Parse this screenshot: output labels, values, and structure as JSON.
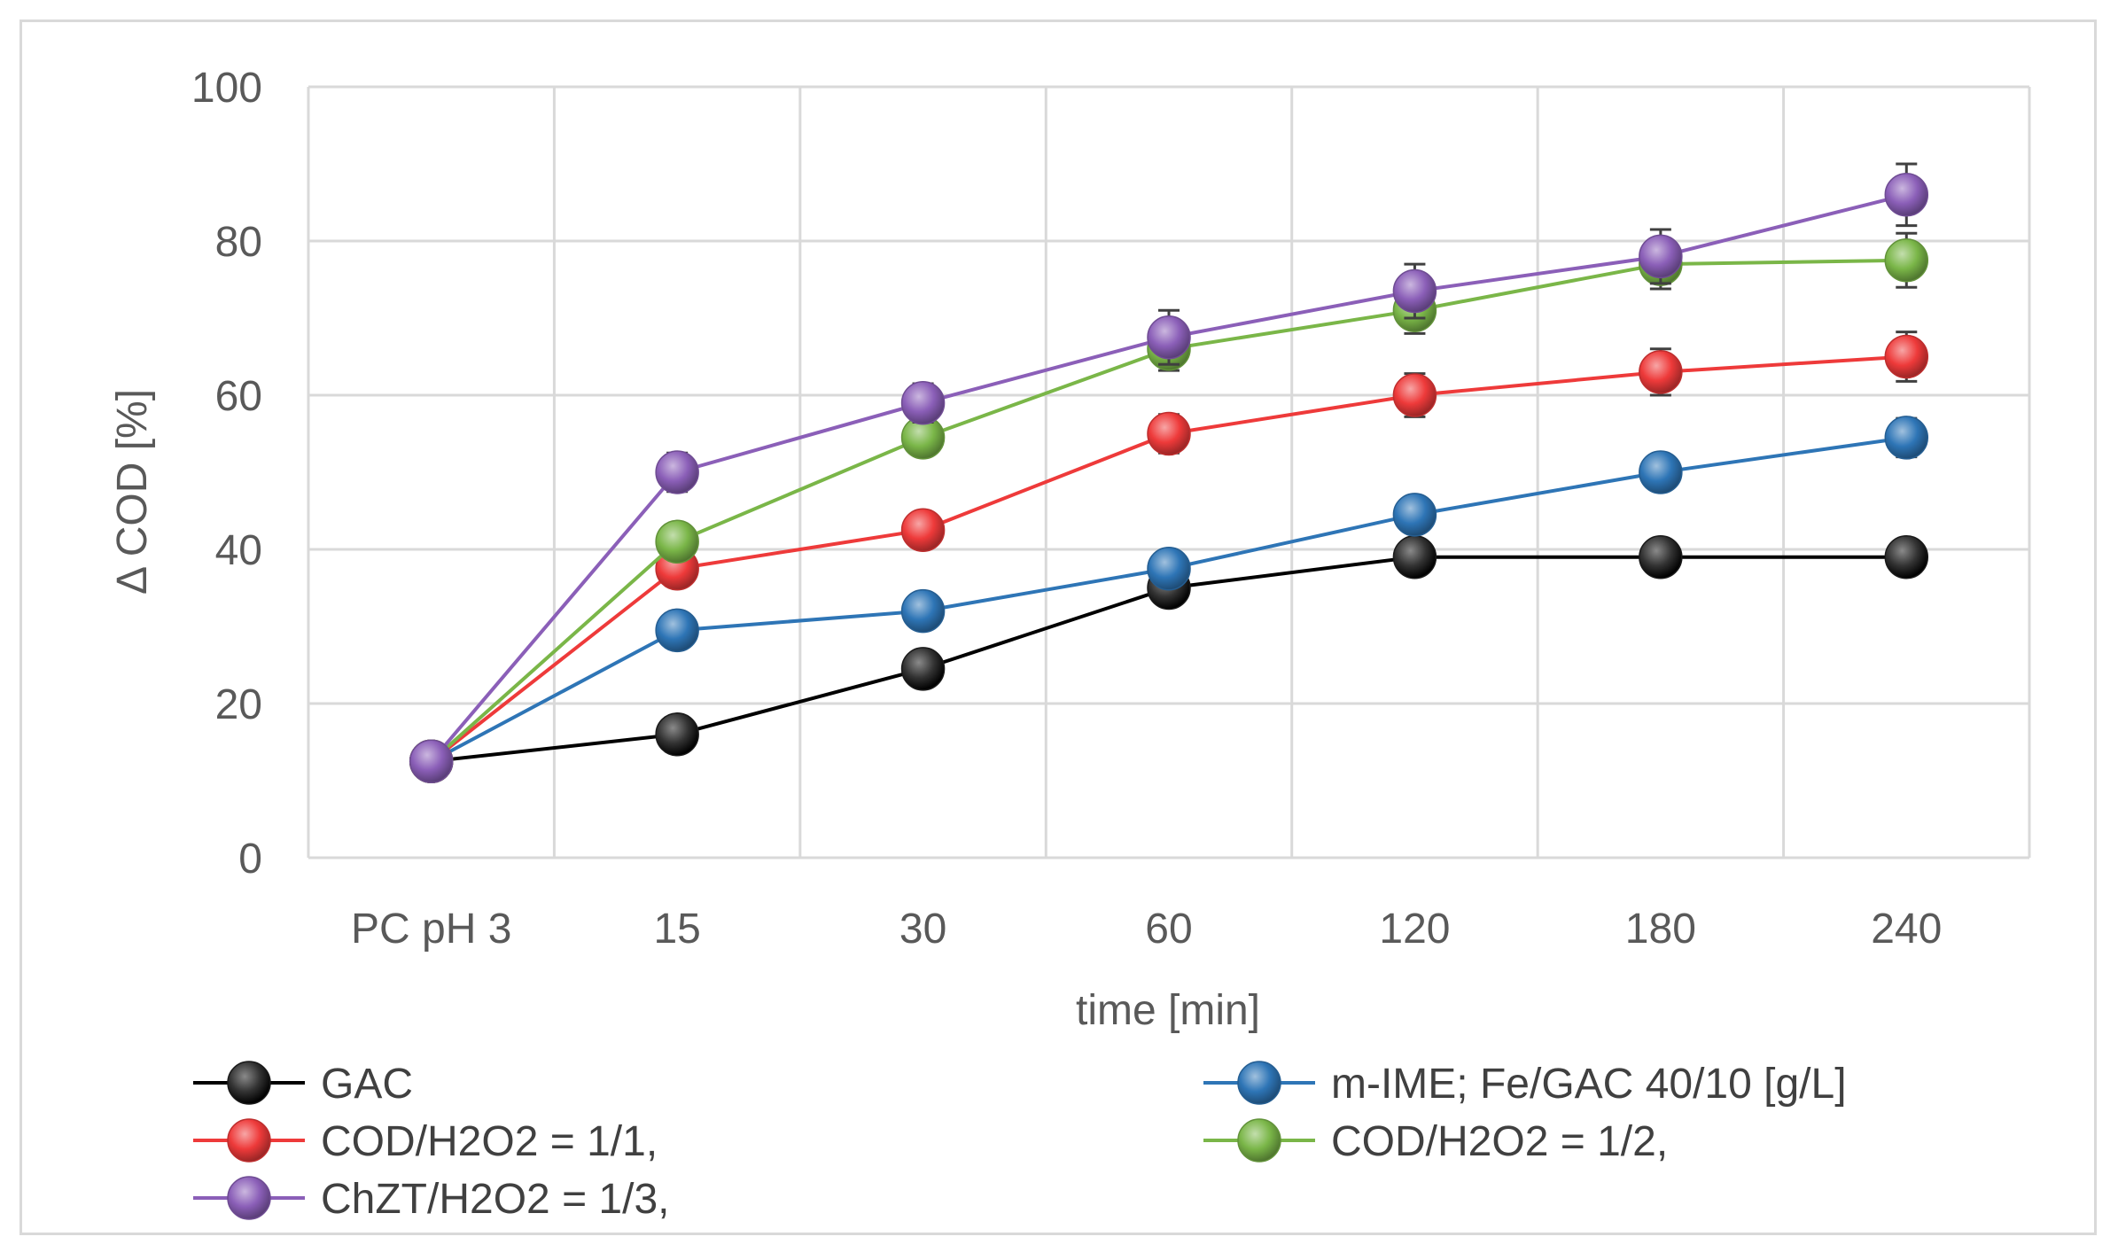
{
  "chart_data": {
    "type": "line",
    "title": "",
    "xlabel": "time [min]",
    "ylabel": "Δ COD [%]",
    "categories": [
      "PC pH 3",
      "15",
      "30",
      "60",
      "120",
      "180",
      "240"
    ],
    "ylim": [
      0,
      100
    ],
    "yticks": [
      0,
      20,
      40,
      60,
      80,
      100
    ],
    "grid": true,
    "legend_position": "bottom",
    "series": [
      {
        "name": "GAC",
        "color": "#000000",
        "values": [
          12.5,
          16,
          24.5,
          35,
          39,
          39,
          39
        ],
        "errors": [
          0,
          0,
          0,
          0,
          0,
          0,
          0
        ]
      },
      {
        "name": "m-IME; Fe/GAC  40/10 [g/L]",
        "color": "#2e75b6",
        "values": [
          12.5,
          29.5,
          32,
          37.5,
          44.5,
          50,
          54.5
        ],
        "errors": [
          0,
          0,
          0,
          0,
          0,
          0,
          2.5
        ]
      },
      {
        "name": "COD/H2O2 = 1/1,",
        "color": "#ee3a3a",
        "values": [
          12.5,
          37.5,
          42.5,
          55,
          60,
          63,
          65
        ],
        "errors": [
          0,
          0,
          0,
          2.5,
          2.8,
          3,
          3.2
        ]
      },
      {
        "name": "COD/H2O2 = 1/2,",
        "color": "#7ab648",
        "values": [
          12.5,
          41,
          54.5,
          66,
          71,
          77,
          77.5
        ],
        "errors": [
          0,
          0,
          0,
          2.8,
          3,
          3.2,
          3.5
        ]
      },
      {
        "name": "ChZT/H2O2 = 1/3,",
        "color": "#8b5fb8",
        "values": [
          12.5,
          50,
          59,
          67.5,
          73.5,
          78,
          86
        ],
        "errors": [
          0,
          2.5,
          2.5,
          3.5,
          3.5,
          3.5,
          4
        ]
      }
    ]
  }
}
